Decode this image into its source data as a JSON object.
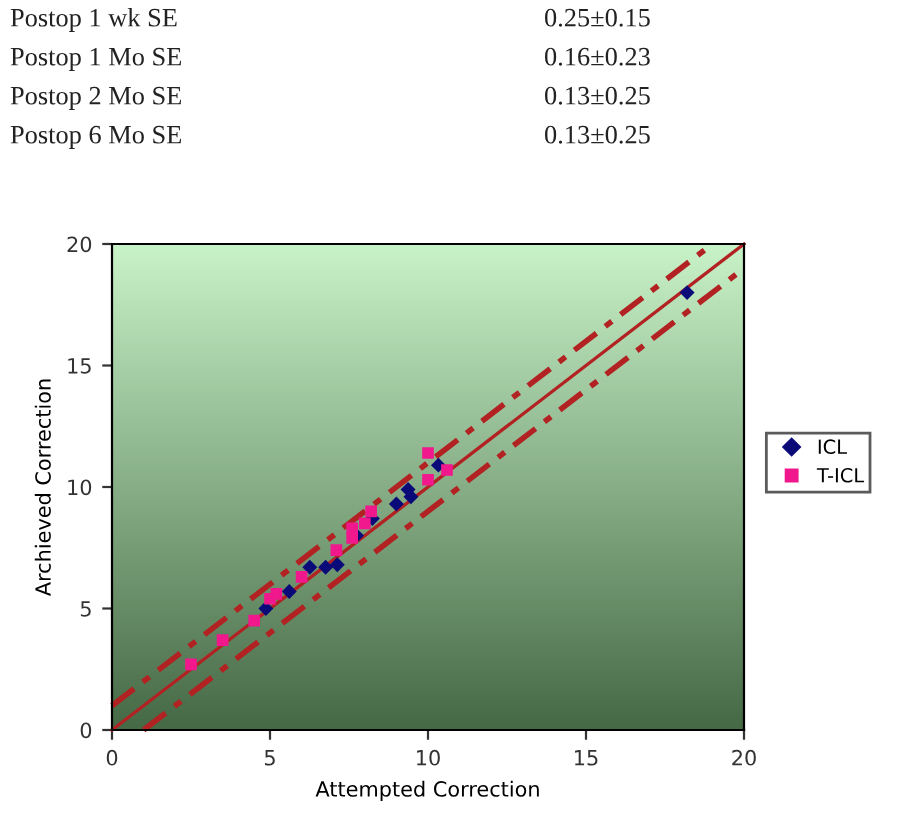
{
  "chart_data": {
    "type": "scatter",
    "xlabel": "Attempted Correction",
    "ylabel": "Archieved Correction",
    "annotations": [
      "Postop 1 wk SE",
      "0.25±0.15",
      "Postop 1 Mo SE",
      "0.16±0.23",
      "Postop 2 Mo SE",
      "0.13±0.25",
      "Postop 6 Mo SE",
      "0.13±0.25"
    ],
    "series": [
      {
        "name": "ICL",
        "color": "#0a0a78",
        "marker": "diamond",
        "x": [
          4.87,
          5.61,
          6.26,
          6.76,
          7.13,
          7.74,
          8.24,
          9.0,
          9.37,
          9.46,
          10.33,
          18.2
        ],
        "values": [
          5.0,
          5.7,
          6.7,
          6.7,
          6.8,
          8.0,
          8.7,
          9.3,
          9.9,
          9.6,
          10.9,
          18.0
        ]
      },
      {
        "name": "T-ICL",
        "color": "#f0188c",
        "marker": "square",
        "x": [
          2.5,
          3.5,
          4.5,
          5.0,
          5.2,
          6.0,
          7.1,
          7.6,
          7.6,
          8.0,
          8.2,
          10.0,
          10.0,
          10.6
        ],
        "values": [
          2.7,
          3.7,
          4.5,
          5.4,
          5.6,
          6.3,
          7.4,
          8.3,
          7.9,
          8.5,
          9.0,
          11.4,
          10.3,
          10.7
        ]
      },
      {
        "type": "line",
        "color": "#b22222",
        "line_style": "solid",
        "marker": "none",
        "x": [
          0,
          20
        ],
        "values": [
          0,
          20
        ]
      },
      {
        "type": "line",
        "color": "#b22222",
        "line_style": "dashed",
        "marker": "none",
        "x": [
          0,
          19
        ],
        "values": [
          1,
          20
        ]
      },
      {
        "type": "line",
        "color": "#b22222",
        "line_style": "dashed",
        "marker": "none",
        "x": [
          1,
          20
        ],
        "values": [
          0,
          19
        ]
      }
    ],
    "xlim": [
      0,
      20
    ],
    "ylim": [
      0,
      20
    ],
    "xticks": [
      0,
      5,
      10,
      15,
      20
    ],
    "yticks": [
      0,
      5,
      10,
      15,
      20
    ],
    "grid": false,
    "legend": "right"
  }
}
